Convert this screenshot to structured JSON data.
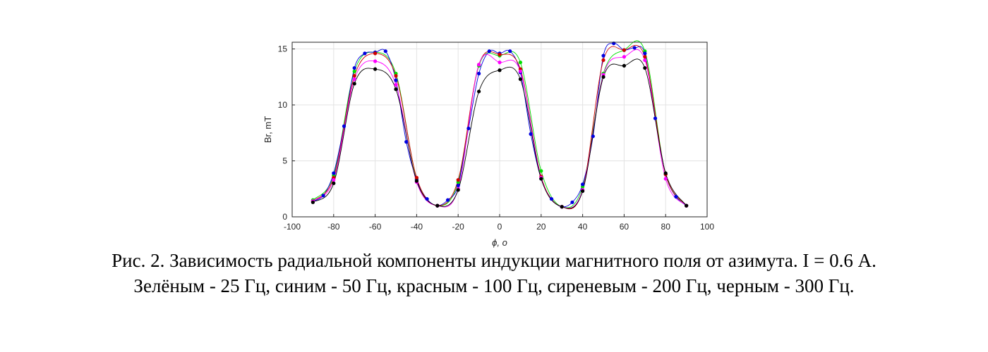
{
  "caption": {
    "line1": "Рис. 2. Зависимость радиальной компоненты индукции магнитного поля от азимута. I = 0.6 А.",
    "line2": "Зелёным - 25 Гц, синим - 50 Гц, красным - 100 Гц, сиреневым - 200 Гц, черным - 300 Гц."
  },
  "chart_data": {
    "type": "line",
    "xlabel": "ϕ, o",
    "ylabel": "Br, mT",
    "xlim": [
      -100,
      100
    ],
    "ylim": [
      0,
      15.6
    ],
    "xticks": [
      -100,
      -80,
      -60,
      -40,
      -20,
      0,
      20,
      40,
      60,
      80,
      100
    ],
    "yticks": [
      0,
      5,
      10,
      15
    ],
    "grid": true,
    "series": [
      {
        "color": "#00e000",
        "x": [
          -90,
          -80,
          -70,
          -60,
          -50,
          -40,
          -30,
          -20,
          -10,
          0,
          10,
          20,
          30,
          40,
          50,
          60,
          70,
          80,
          90
        ],
        "y": [
          1.5,
          3.7,
          13.0,
          14.7,
          12.8,
          3.4,
          1.0,
          3.1,
          13.5,
          14.4,
          13.8,
          4.1,
          0.9,
          2.7,
          12.8,
          14.9,
          14.8,
          3.8,
          1.0
        ]
      },
      {
        "color": "#0000e0",
        "x": [
          -90,
          -85,
          -80,
          -75,
          -70,
          -65,
          -60,
          -55,
          -50,
          -45,
          -40,
          -35,
          -30,
          -25,
          -20,
          -15,
          -10,
          -5,
          0,
          5,
          10,
          15,
          20,
          25,
          30,
          35,
          40,
          45,
          50,
          55,
          60,
          65,
          70,
          75,
          80,
          85,
          90
        ],
        "y": [
          1.4,
          1.9,
          3.9,
          8.1,
          13.3,
          14.6,
          14.7,
          14.8,
          12.2,
          6.7,
          3.3,
          1.6,
          1.0,
          1.5,
          2.8,
          7.9,
          12.8,
          14.8,
          14.6,
          14.8,
          12.9,
          7.4,
          3.4,
          1.6,
          0.9,
          1.3,
          2.9,
          7.2,
          14.4,
          15.5,
          14.9,
          15.1,
          14.6,
          8.8,
          3.8,
          1.8,
          1.0
        ]
      },
      {
        "color": "#d00000",
        "x": [
          -90,
          -80,
          -70,
          -60,
          -50,
          -40,
          -30,
          -20,
          -10,
          0,
          10,
          20,
          30,
          40,
          50,
          60,
          70,
          80,
          90
        ],
        "y": [
          1.4,
          3.5,
          12.6,
          14.6,
          12.6,
          3.5,
          1.0,
          3.3,
          13.6,
          14.5,
          13.2,
          3.6,
          0.9,
          2.4,
          14.0,
          14.9,
          14.3,
          3.8,
          1.0
        ]
      },
      {
        "color": "#ff00ff",
        "x": [
          -90,
          -80,
          -70,
          -60,
          -50,
          -40,
          -30,
          -20,
          -10,
          0,
          10,
          20,
          30,
          40,
          50,
          60,
          70,
          80,
          90
        ],
        "y": [
          1.4,
          3.3,
          12.3,
          13.9,
          11.8,
          3.1,
          1.0,
          2.5,
          13.6,
          13.8,
          13.0,
          3.5,
          0.9,
          2.4,
          12.7,
          14.3,
          14.0,
          3.4,
          1.0
        ]
      },
      {
        "color": "#000000",
        "x": [
          -90,
          -80,
          -70,
          -60,
          -50,
          -40,
          -30,
          -20,
          -10,
          0,
          10,
          20,
          30,
          40,
          50,
          60,
          70,
          80,
          90
        ],
        "y": [
          1.3,
          3.0,
          11.9,
          13.2,
          11.4,
          3.2,
          1.0,
          2.4,
          11.2,
          13.1,
          12.3,
          3.4,
          0.9,
          2.3,
          12.5,
          13.5,
          13.3,
          3.9,
          1.0
        ]
      }
    ]
  }
}
